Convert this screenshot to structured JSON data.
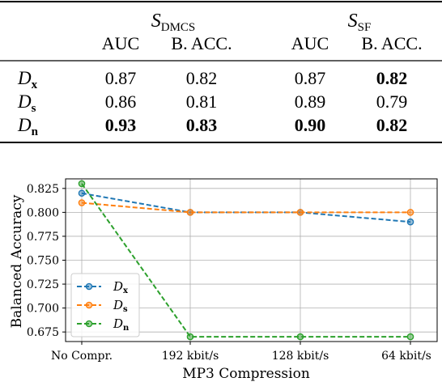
{
  "table": {
    "groups": [
      {
        "symbol": "S",
        "sub": "DMCS"
      },
      {
        "symbol": "S",
        "sub": "SF"
      }
    ],
    "columns": [
      "AUC",
      "B. ACC.",
      "AUC",
      "B. ACC."
    ],
    "rows": [
      {
        "symbol": "D",
        "sub": "x",
        "values": [
          "0.87",
          "0.82",
          "0.87",
          "0.82"
        ],
        "bold": [
          false,
          false,
          false,
          true
        ]
      },
      {
        "symbol": "D",
        "sub": "s",
        "values": [
          "0.86",
          "0.81",
          "0.89",
          "0.79"
        ],
        "bold": [
          false,
          false,
          false,
          false
        ]
      },
      {
        "symbol": "D",
        "sub": "n",
        "values": [
          "0.93",
          "0.83",
          "0.90",
          "0.82"
        ],
        "bold": [
          true,
          true,
          true,
          true
        ]
      }
    ]
  },
  "chart_data": {
    "type": "line",
    "categories": [
      "No Compr.",
      "192 kbit/s",
      "128 kbit/s",
      "64 kbit/s"
    ],
    "series": [
      {
        "name": "Dx",
        "symbol": "D",
        "sub": "x",
        "color": "#1f77b4",
        "values": [
          0.82,
          0.8,
          0.8,
          0.79
        ]
      },
      {
        "name": "Ds",
        "symbol": "D",
        "sub": "s",
        "color": "#ff7f0e",
        "values": [
          0.81,
          0.8,
          0.8,
          0.8
        ]
      },
      {
        "name": "Dn",
        "symbol": "D",
        "sub": "n",
        "color": "#2ca02c",
        "values": [
          0.83,
          0.67,
          0.67,
          0.67
        ]
      }
    ],
    "xlabel": "MP3 Compression",
    "ylabel": "Balanced Accuracy",
    "ylim": [
      0.665,
      0.835
    ],
    "yticks": [
      "0.675",
      "0.700",
      "0.725",
      "0.750",
      "0.775",
      "0.800",
      "0.825"
    ],
    "grid": true,
    "legend": "lower-left",
    "line_style": "dashed"
  }
}
